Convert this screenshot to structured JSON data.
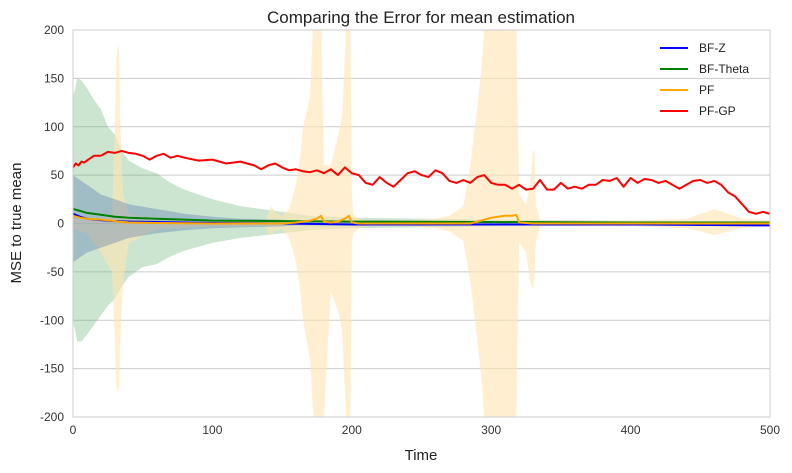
{
  "chart_data": {
    "type": "line",
    "title": "Comparing the Error for mean estimation",
    "xlabel": "Time",
    "ylabel": "MSE to true mean",
    "xlim": [
      0,
      500
    ],
    "ylim": [
      -200,
      200
    ],
    "xticks": [
      0,
      100,
      200,
      300,
      400,
      500
    ],
    "yticks": [
      -200,
      -150,
      -100,
      -50,
      0,
      50,
      100,
      150,
      200
    ],
    "grid": "horizontal",
    "legend_position": "top-right",
    "series": [
      {
        "name": "BF-Z",
        "color": "#0000ff",
        "x": [
          0,
          5,
          10,
          20,
          30,
          40,
          60,
          80,
          100,
          150,
          200,
          300,
          400,
          500
        ],
        "values": [
          10,
          7,
          5,
          3.5,
          2.5,
          2,
          1.5,
          1,
          0.5,
          0,
          -1,
          -1,
          -1,
          -2
        ],
        "band": {
          "color": "#4c72b0",
          "x": [
            0,
            5,
            10,
            20,
            30,
            40,
            60,
            80,
            100,
            120,
            150,
            160,
            200,
            300,
            400,
            500
          ],
          "upper": [
            50,
            45,
            40,
            30,
            25,
            20,
            15,
            10,
            7,
            5,
            4,
            3,
            2,
            1.5,
            1,
            1
          ],
          "lower": [
            -40,
            -35,
            -30,
            -25,
            -20,
            -15,
            -10,
            -7,
            -5,
            -4,
            -3,
            -2,
            -2,
            -1.5,
            -1,
            -1
          ]
        }
      },
      {
        "name": "BF-Theta",
        "color": "#008000",
        "x": [
          0,
          5,
          10,
          20,
          30,
          40,
          60,
          80,
          100,
          150,
          200,
          300,
          400,
          500
        ],
        "values": [
          15,
          13,
          11,
          9,
          7,
          6,
          5,
          4,
          3,
          2.5,
          2,
          1.5,
          1,
          1
        ],
        "band": {
          "color": "#55a868",
          "x": [
            0,
            3,
            6,
            10,
            15,
            20,
            25,
            30,
            35,
            40,
            50,
            60,
            70,
            80,
            100,
            120,
            150,
            170,
            200,
            250,
            300,
            400,
            500
          ],
          "upper": [
            130,
            150,
            148,
            140,
            128,
            118,
            100,
            92,
            75,
            65,
            57,
            52,
            42,
            35,
            25,
            18,
            12,
            8,
            6,
            5,
            4,
            3,
            2
          ],
          "lower": [
            -100,
            -122,
            -122,
            -115,
            -105,
            -95,
            -85,
            -78,
            -65,
            -55,
            -45,
            -42,
            -34,
            -28,
            -20,
            -15,
            -10,
            -7,
            -5,
            -4,
            -3,
            -2,
            -2
          ]
        }
      },
      {
        "name": "PF",
        "color": "#ffa500",
        "x": [
          0,
          5,
          10,
          20,
          28,
          32,
          40,
          60,
          100,
          150,
          160,
          170,
          175,
          178,
          180,
          185,
          190,
          195,
          198,
          200,
          205,
          250,
          285,
          290,
          300,
          310,
          315,
          318,
          320,
          330,
          400,
          450,
          500
        ],
        "values": [
          8,
          6,
          5,
          4,
          3,
          2,
          1,
          0.5,
          0,
          0,
          1,
          3,
          5,
          8,
          2,
          1,
          2,
          5,
          8,
          1,
          0,
          0,
          0,
          2,
          6,
          8,
          8,
          9,
          1,
          0,
          0,
          0,
          0
        ],
        "band": {
          "color": "#ffe4b0",
          "x": [
            0,
            10,
            20,
            28,
            30,
            31,
            32,
            33,
            34,
            36,
            40,
            60,
            100,
            138,
            140,
            142,
            145,
            150,
            155,
            160,
            163,
            165,
            170,
            172,
            173,
            174,
            175,
            176,
            177,
            178,
            180,
            185,
            190,
            193,
            195,
            196,
            197,
            198,
            199,
            200,
            201,
            205,
            210,
            240,
            260,
            270,
            280,
            285,
            290,
            293,
            295,
            300,
            305,
            310,
            315,
            316,
            317,
            318,
            320,
            325,
            328,
            330,
            331,
            332,
            335,
            380,
            400,
            440,
            450,
            455,
            460,
            480,
            500
          ],
          "upper": [
            5,
            5,
            5,
            8,
            100,
            160,
            185,
            180,
            100,
            30,
            10,
            4,
            2,
            2,
            10,
            18,
            12,
            8,
            15,
            40,
            70,
            100,
            130,
            200,
            200,
            200,
            200,
            200,
            200,
            200,
            60,
            60,
            90,
            110,
            170,
            200,
            200,
            200,
            200,
            30,
            10,
            5,
            3,
            3,
            5,
            8,
            18,
            60,
            120,
            160,
            200,
            200,
            200,
            200,
            200,
            200,
            200,
            200,
            30,
            20,
            40,
            75,
            75,
            20,
            3,
            3,
            3,
            5,
            10,
            12,
            15,
            5,
            3
          ],
          "lower": [
            -5,
            -10,
            -30,
            -50,
            -120,
            -165,
            -175,
            -170,
            -120,
            -60,
            -20,
            -6,
            -3,
            -3,
            -10,
            -12,
            -8,
            -6,
            -15,
            -40,
            -70,
            -100,
            -140,
            -190,
            -200,
            -200,
            -200,
            -200,
            -200,
            -200,
            -200,
            -70,
            -90,
            -110,
            -170,
            -200,
            -200,
            -200,
            -200,
            -20,
            -10,
            -5,
            -3,
            -3,
            -5,
            -8,
            -18,
            -60,
            -120,
            -160,
            -200,
            -200,
            -200,
            -200,
            -200,
            -200,
            -200,
            -200,
            -20,
            -30,
            -60,
            -68,
            -55,
            -20,
            -3,
            -3,
            -3,
            -5,
            -8,
            -10,
            -12,
            -5,
            -3
          ]
        }
      },
      {
        "name": "PF-GP",
        "color": "#ff0000",
        "x": [
          0,
          2,
          4,
          6,
          8,
          10,
          15,
          20,
          25,
          30,
          35,
          40,
          45,
          50,
          55,
          60,
          65,
          70,
          75,
          80,
          90,
          100,
          110,
          120,
          130,
          135,
          140,
          145,
          150,
          155,
          160,
          165,
          170,
          175,
          180,
          185,
          190,
          195,
          200,
          205,
          210,
          215,
          220,
          225,
          230,
          235,
          240,
          245,
          250,
          255,
          260,
          265,
          270,
          275,
          280,
          285,
          290,
          295,
          300,
          305,
          310,
          315,
          320,
          325,
          330,
          335,
          340,
          345,
          350,
          355,
          360,
          365,
          370,
          375,
          380,
          385,
          390,
          395,
          400,
          405,
          410,
          415,
          420,
          425,
          430,
          435,
          440,
          445,
          450,
          455,
          460,
          465,
          470,
          475,
          480,
          485,
          490,
          495,
          500
        ],
        "values": [
          58,
          62,
          60,
          64,
          63,
          65,
          70,
          70,
          74,
          73,
          75,
          73,
          72,
          70,
          66,
          70,
          72,
          68,
          70,
          68,
          65,
          66,
          62,
          64,
          60,
          56,
          60,
          62,
          58,
          55,
          56,
          54,
          53,
          55,
          52,
          56,
          50,
          58,
          52,
          50,
          42,
          40,
          48,
          42,
          38,
          45,
          52,
          54,
          50,
          48,
          55,
          52,
          44,
          42,
          45,
          42,
          48,
          50,
          42,
          40,
          40,
          36,
          40,
          35,
          36,
          45,
          35,
          35,
          42,
          36,
          38,
          36,
          40,
          40,
          45,
          44,
          47,
          38,
          47,
          42,
          46,
          45,
          42,
          44,
          40,
          36,
          40,
          44,
          45,
          42,
          44,
          40,
          32,
          28,
          20,
          12,
          10,
          12,
          10
        ]
      }
    ]
  }
}
